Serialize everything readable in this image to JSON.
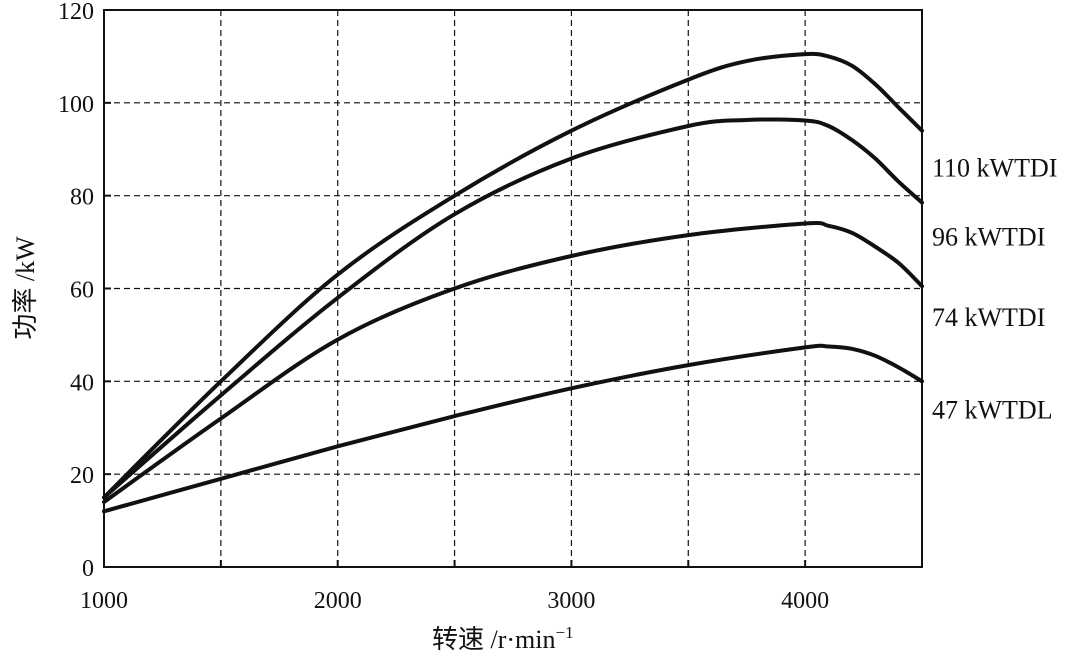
{
  "chart_data": {
    "type": "line",
    "title": "",
    "xlabel": "转速 /r·min",
    "xlabel_superscript": "−1",
    "ylabel": "功率 /kW",
    "xlim": [
      1000,
      4500
    ],
    "ylim": [
      0,
      120
    ],
    "x_ticks": [
      "1000",
      "2000",
      "3000",
      "4000"
    ],
    "x_tick_values": [
      1000,
      2000,
      3000,
      4000
    ],
    "y_ticks": [
      "0",
      "20",
      "40",
      "60",
      "80",
      "100",
      "120"
    ],
    "y_tick_values": [
      0,
      20,
      40,
      60,
      80,
      100,
      120
    ],
    "x_grid_values": [
      1500,
      2000,
      2500,
      3000,
      3500,
      4000
    ],
    "y_grid_values": [
      20,
      40,
      60,
      80,
      100
    ],
    "grid": true,
    "grid_style": "dashed",
    "legend": "inline-right",
    "series": [
      {
        "name": "110 kWTDI",
        "x": [
          1000,
          1500,
          2000,
          2500,
          3000,
          3500,
          3750,
          4000,
          4100,
          4200,
          4300,
          4400,
          4500
        ],
        "y": [
          15,
          40,
          63,
          80,
          94,
          105,
          109,
          110.5,
          110,
          108,
          104,
          99,
          94
        ]
      },
      {
        "name": "96 kWTDI",
        "x": [
          1000,
          1500,
          2000,
          2500,
          3000,
          3500,
          3750,
          4000,
          4100,
          4200,
          4300,
          4400,
          4500
        ],
        "y": [
          15,
          37,
          58,
          76,
          88,
          95,
          96.3,
          96.2,
          95,
          92,
          88,
          83,
          78.5
        ]
      },
      {
        "name": "74 kWTDI",
        "x": [
          1000,
          1500,
          2000,
          2500,
          3000,
          3500,
          4000,
          4100,
          4200,
          4300,
          4400,
          4500
        ],
        "y": [
          14,
          32,
          49,
          60,
          67,
          71.5,
          74,
          73.5,
          72,
          69,
          65.5,
          60.5
        ]
      },
      {
        "name": "47 kWTDL",
        "x": [
          1000,
          1500,
          2000,
          2500,
          3000,
          3500,
          4000,
          4100,
          4200,
          4300,
          4400,
          4500
        ],
        "y": [
          12,
          19,
          26,
          32.5,
          38.5,
          43.5,
          47.3,
          47.5,
          47,
          45.5,
          43,
          40
        ]
      }
    ]
  }
}
